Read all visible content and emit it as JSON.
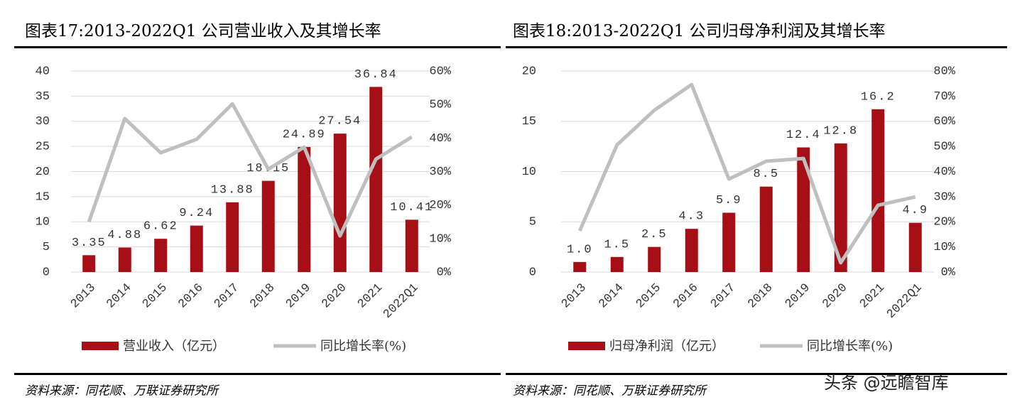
{
  "chart_data": [
    {
      "type": "bar",
      "title": "图表17:2013-2022Q1 公司营业收入及其增长率",
      "categories": [
        "2013",
        "2014",
        "2015",
        "2016",
        "2017",
        "2018",
        "2019",
        "2020",
        "2021",
        "2022Q1"
      ],
      "series": [
        {
          "name": "营业收入（亿元）",
          "type": "bar",
          "color": "#a50f15",
          "values": [
            3.35,
            4.88,
            6.62,
            9.24,
            13.88,
            18.15,
            24.89,
            27.54,
            36.84,
            10.41
          ]
        },
        {
          "name": "同比增长率(%)",
          "type": "line",
          "axis": "y2",
          "color": "#bfbfbf",
          "values": [
            15.0,
            45.8,
            35.6,
            39.6,
            50.2,
            30.7,
            37.3,
            10.8,
            33.7,
            40.3
          ]
        }
      ],
      "ylim": [
        0,
        40
      ],
      "yticks": [
        0,
        5,
        10,
        15,
        20,
        25,
        30,
        35,
        40
      ],
      "y2lim": [
        0,
        60
      ],
      "y2ticks": [
        {
          "value": 0,
          "label": "0%"
        },
        {
          "value": 10,
          "label": "10%"
        },
        {
          "value": 20,
          "label": "20%"
        },
        {
          "value": 30,
          "label": "30%"
        },
        {
          "value": 40,
          "label": "40%"
        },
        {
          "value": 50,
          "label": "50%"
        },
        {
          "value": 60,
          "label": "60%"
        }
      ],
      "grid": true
    },
    {
      "type": "bar",
      "title": "图表18:2013-2022Q1 公司归母净利润及其增长率",
      "categories": [
        "2013",
        "2014",
        "2015",
        "2016",
        "2017",
        "2018",
        "2019",
        "2020",
        "2021",
        "2022Q1"
      ],
      "series": [
        {
          "name": "归母净利润（亿元）",
          "type": "bar",
          "color": "#a50f15",
          "values": [
            1.0,
            1.5,
            2.5,
            4.3,
            5.9,
            8.5,
            12.4,
            12.8,
            16.2,
            4.9
          ],
          "value_labels": [
            "1.0",
            "1.5",
            "2.5",
            "4.3",
            "5.9",
            "8.5",
            "12.4",
            "12.8",
            "16.2",
            "4.9"
          ]
        },
        {
          "name": "同比增长率(%)",
          "type": "line",
          "axis": "y2",
          "color": "#bfbfbf",
          "values": [
            16.4,
            50.6,
            64.4,
            74.6,
            37.0,
            44.1,
            45.2,
            3.7,
            26.6,
            29.9
          ]
        }
      ],
      "ylim": [
        0,
        20
      ],
      "yticks": [
        0,
        5,
        10,
        15,
        20
      ],
      "y2lim": [
        0,
        80
      ],
      "y2ticks": [
        {
          "value": 0,
          "label": "0%"
        },
        {
          "value": 10,
          "label": "10%"
        },
        {
          "value": 20,
          "label": "20%"
        },
        {
          "value": 30,
          "label": "30%"
        },
        {
          "value": 40,
          "label": "40%"
        },
        {
          "value": 50,
          "label": "50%"
        },
        {
          "value": 60,
          "label": "60%"
        },
        {
          "value": 70,
          "label": "70%"
        },
        {
          "value": 80,
          "label": "80%"
        }
      ],
      "grid": true
    }
  ],
  "sources": [
    "资料来源：同花顺、万联证券研究所",
    "资料来源：同花顺、万联证券研究所"
  ],
  "watermark": "头条 @远瞻智库"
}
